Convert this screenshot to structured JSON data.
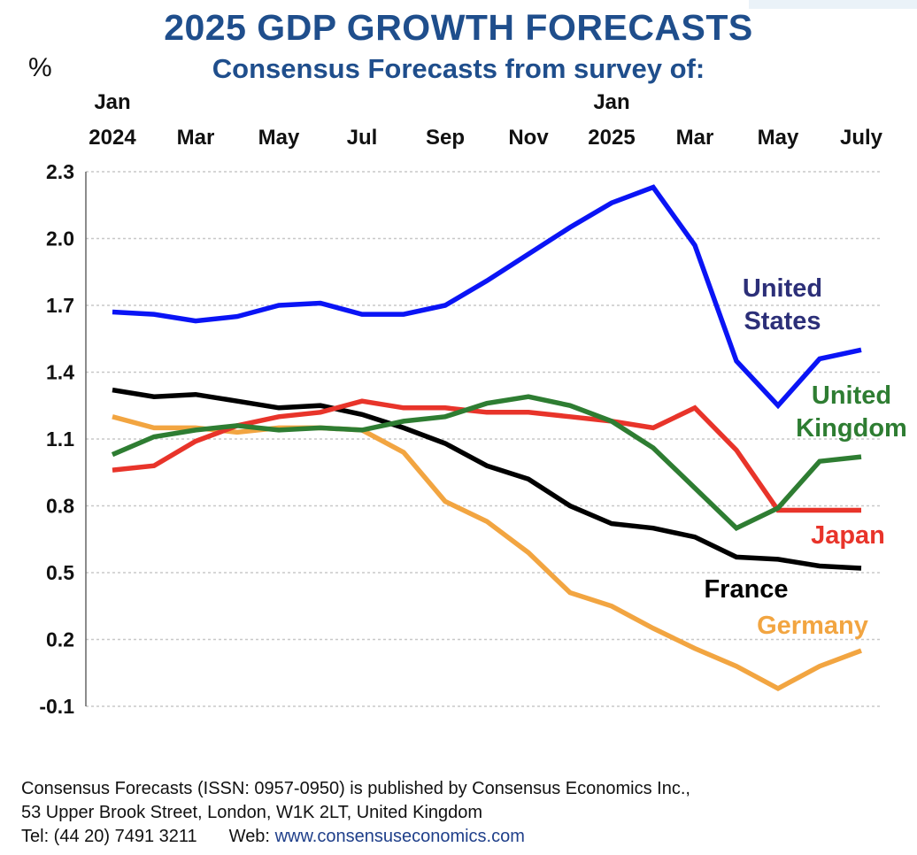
{
  "title": "2025 GDP GROWTH FORECASTS",
  "subtitle": "Consensus Forecasts from survey of:",
  "footer": {
    "line1": "Consensus Forecasts (ISSN: 0957-0950)  is published by Consensus Economics Inc.,",
    "line2": "53 Upper Brook Street, London, W1K 2LT, United Kingdom",
    "tel": "Tel: (44 20) 7491 3211",
    "web_label": "Web:",
    "web_url": "www.consensuseconomics.com"
  },
  "chart_data": {
    "type": "line",
    "ylabel": "%",
    "ylim": [
      -0.1,
      2.3
    ],
    "yticks": [
      "2.3",
      "2.0",
      "1.7",
      "1.4",
      "1.1",
      "0.8",
      "0.5",
      "0.2",
      "-0.1"
    ],
    "ytick_values": [
      2.3,
      2.0,
      1.7,
      1.4,
      1.1,
      0.8,
      0.5,
      0.2,
      -0.1
    ],
    "grid": true,
    "x_labels": [
      {
        "index": 0,
        "lines": [
          "Jan",
          "2024"
        ]
      },
      {
        "index": 2,
        "lines": [
          "Mar"
        ]
      },
      {
        "index": 4,
        "lines": [
          "May"
        ]
      },
      {
        "index": 6,
        "lines": [
          "Jul"
        ]
      },
      {
        "index": 8,
        "lines": [
          "Sep"
        ]
      },
      {
        "index": 10,
        "lines": [
          "Nov"
        ]
      },
      {
        "index": 12,
        "lines": [
          "Jan",
          "2025"
        ]
      },
      {
        "index": 14,
        "lines": [
          "Mar"
        ]
      },
      {
        "index": 16,
        "lines": [
          "May"
        ]
      },
      {
        "index": 18,
        "lines": [
          "July"
        ]
      }
    ],
    "series": [
      {
        "name": "United States",
        "label_lines": [
          "United",
          "States"
        ],
        "color": "#0a14f5",
        "label_color": "#2c2f78",
        "values": [
          1.67,
          1.66,
          1.63,
          1.65,
          1.7,
          1.71,
          1.66,
          1.66,
          1.7,
          1.81,
          1.93,
          2.05,
          2.16,
          2.23,
          1.97,
          1.45,
          1.25,
          1.46,
          1.5
        ]
      },
      {
        "name": "United Kingdom",
        "label_lines": [
          "United",
          "Kingdom"
        ],
        "color": "#2e7d32",
        "label_color": "#2e7d32",
        "values": [
          1.03,
          1.11,
          1.14,
          1.16,
          1.14,
          1.15,
          1.14,
          1.18,
          1.2,
          1.26,
          1.29,
          1.25,
          1.18,
          1.06,
          0.88,
          0.7,
          0.79,
          1.0,
          1.02
        ]
      },
      {
        "name": "Japan",
        "label_lines": [
          "Japan"
        ],
        "color": "#e8342a",
        "label_color": "#e8342a",
        "values": [
          0.96,
          0.98,
          1.09,
          1.16,
          1.2,
          1.22,
          1.27,
          1.24,
          1.24,
          1.22,
          1.22,
          1.2,
          1.18,
          1.15,
          1.24,
          1.05,
          0.78,
          0.78,
          0.78
        ]
      },
      {
        "name": "France",
        "label_lines": [
          "France"
        ],
        "color": "#000000",
        "label_color": "#000000",
        "values": [
          1.32,
          1.29,
          1.3,
          1.27,
          1.24,
          1.25,
          1.21,
          1.15,
          1.08,
          0.98,
          0.92,
          0.8,
          0.72,
          0.7,
          0.66,
          0.57,
          0.56,
          0.53,
          0.52
        ]
      },
      {
        "name": "Germany",
        "label_lines": [
          "Germany"
        ],
        "color": "#f2a541",
        "label_color": "#f2a541",
        "values": [
          1.2,
          1.15,
          1.15,
          1.13,
          1.15,
          1.15,
          1.14,
          1.04,
          0.82,
          0.73,
          0.59,
          0.41,
          0.35,
          0.25,
          0.16,
          0.08,
          -0.02,
          0.08,
          0.15
        ]
      }
    ]
  }
}
